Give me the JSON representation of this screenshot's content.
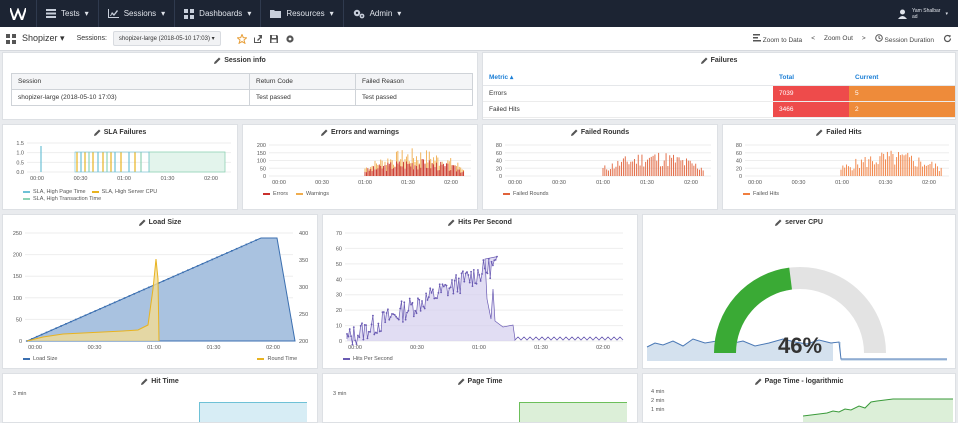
{
  "topbar": {
    "nav": [
      {
        "label": "Tests",
        "icon": "list-icon"
      },
      {
        "label": "Sessions",
        "icon": "chart-icon"
      },
      {
        "label": "Dashboards",
        "icon": "grid-icon"
      },
      {
        "label": "Resources",
        "icon": "folder-icon"
      },
      {
        "label": "Admin",
        "icon": "gears-icon"
      }
    ],
    "user_line1": "Yam Shalbar",
    "user_line2": "ad"
  },
  "toolbar": {
    "dashboard": "Shopizer",
    "sessions_label": "Sessions:",
    "session_value": "shopizer-large (2018-05-10 17:03)",
    "zoom_to_data": "Zoom to Data",
    "zoom_out": "Zoom Out",
    "session_duration": "Session Duration"
  },
  "session_info": {
    "title": "Session info",
    "headers": [
      "Session",
      "Return Code",
      "Failed Reason"
    ],
    "row": [
      "shopizer-large (2018-05-10 17:03)",
      "Test passed",
      "Test passed"
    ]
  },
  "failures": {
    "title": "Failures",
    "headers": [
      "Metric ▴",
      "Total",
      "Current"
    ],
    "rows": [
      {
        "metric": "Errors",
        "total": "7039",
        "current": "5"
      },
      {
        "metric": "Failed Hits",
        "total": "3466",
        "current": "2"
      }
    ]
  },
  "panels": {
    "sla": {
      "title": "SLA Failures",
      "yticks": [
        "1.5",
        "1.0",
        "0.5",
        "0.0"
      ],
      "xticks": [
        "00:00",
        "00:30",
        "01:00",
        "01:30",
        "02:00"
      ],
      "legend": [
        "SLA, High Page Time",
        "SLA, High Server CPU",
        "SLA, High Transaction Time"
      ]
    },
    "errors": {
      "title": "Errors and warnings",
      "yticks": [
        "200",
        "150",
        "100",
        "50",
        "0"
      ],
      "xticks": [
        "00:00",
        "00:30",
        "01:00",
        "01:30",
        "02:00"
      ],
      "legend": [
        "Errors",
        "Warnings"
      ]
    },
    "rounds": {
      "title": "Failed Rounds",
      "yticks": [
        "80",
        "60",
        "40",
        "20",
        "0"
      ],
      "xticks": [
        "00:00",
        "00:30",
        "01:00",
        "01:30",
        "02:00"
      ],
      "legend": [
        "Failed Rounds"
      ]
    },
    "fhits": {
      "title": "Failed Hits",
      "yticks": [
        "80",
        "60",
        "40",
        "20",
        "0"
      ],
      "xticks": [
        "00:00",
        "00:30",
        "01:00",
        "01:30",
        "02:00"
      ],
      "legend": [
        "Failed Hits"
      ]
    },
    "load": {
      "title": "Load Size",
      "yticks": [
        "250",
        "200",
        "150",
        "100",
        "50",
        "0"
      ],
      "y2ticks": [
        "400",
        "350",
        "300",
        "250",
        "200"
      ],
      "xticks": [
        "00:00",
        "00:30",
        "01:00",
        "01:30",
        "02:00"
      ],
      "legend": [
        "Load Size",
        "Round Time"
      ]
    },
    "hps": {
      "title": "Hits Per Second",
      "yticks": [
        "70",
        "60",
        "50",
        "40",
        "30",
        "20",
        "10",
        "0"
      ],
      "xticks": [
        "00:00",
        "00:30",
        "01:00",
        "01:30",
        "02:00"
      ],
      "legend": [
        "Hits Per Second"
      ]
    },
    "cpu": {
      "title": "server CPU",
      "value": "46%"
    },
    "hittime": {
      "title": "Hit Time",
      "ytick": "3 min"
    },
    "pagetime": {
      "title": "Page Time",
      "ytick": "3 min"
    },
    "pagelog": {
      "title": "Page Time - logarithmic",
      "yticks": [
        "4 min",
        "2 min",
        "1 min"
      ]
    }
  },
  "colors": {
    "sla1": "#6ec1d6",
    "sla2": "#e8b320",
    "sla3": "#8fd3b5",
    "errors": "#c9302c",
    "warnings": "#f0ad4e",
    "failed_rounds": "#e0623a",
    "failed_hits": "#f07e3e",
    "load": "#3b6fb0",
    "round_time": "#e8b320",
    "hps": "#6a5bb3",
    "cpu_green": "#3aaa35",
    "cpu_grey": "#e3e3e3"
  }
}
